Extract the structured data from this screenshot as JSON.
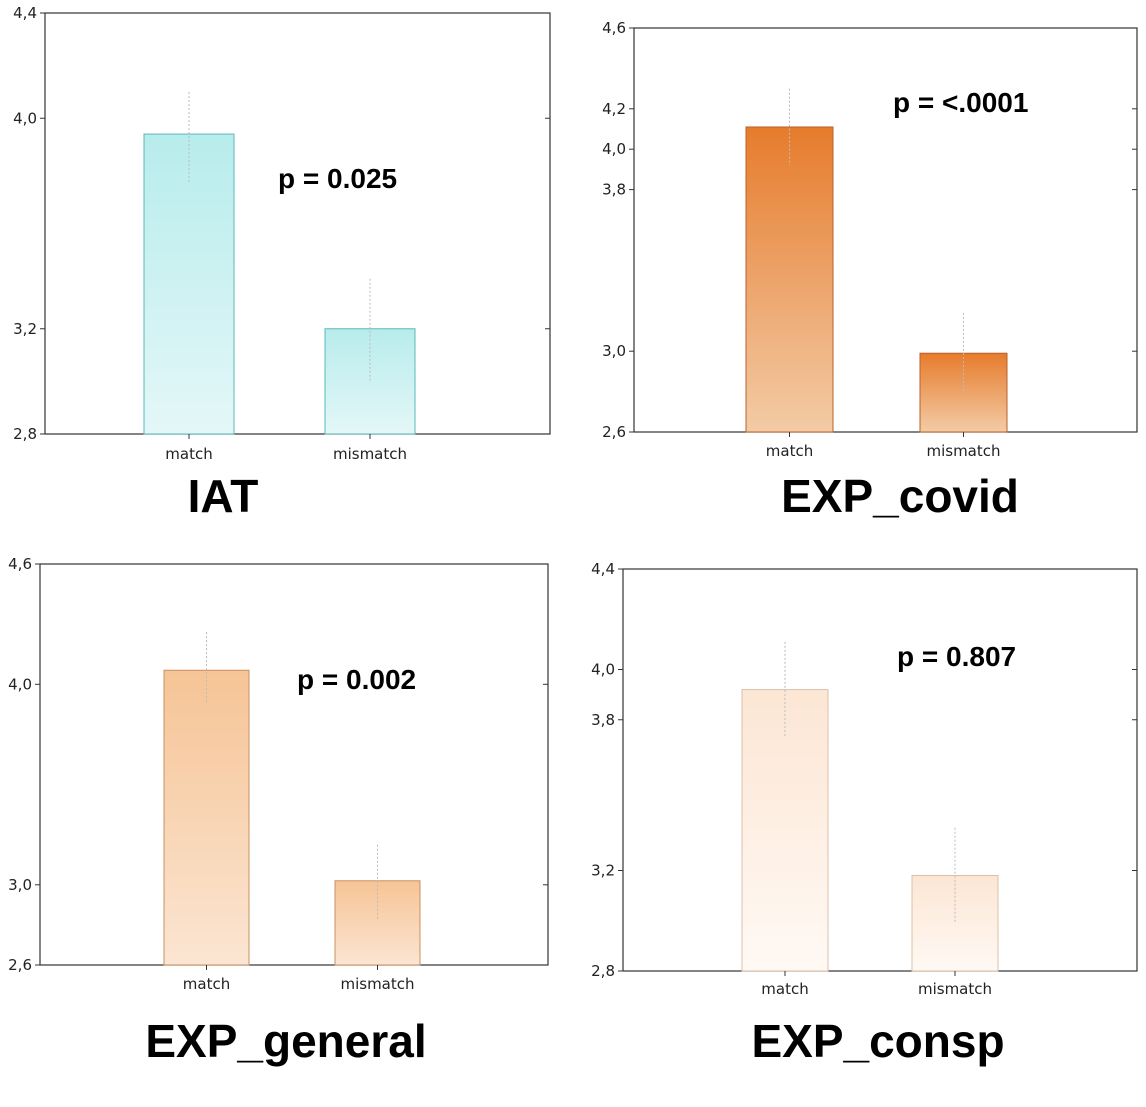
{
  "chart_data": [
    {
      "type": "bar",
      "title": "IAT",
      "annotation": "p = 0.025",
      "categories": [
        "match",
        "mismatch"
      ],
      "values": [
        3.94,
        3.2
      ],
      "error_bars": [
        [
          3.75,
          4.1
        ],
        [
          3.0,
          3.39
        ]
      ],
      "ylim": [
        2.8,
        4.4
      ],
      "yticks": [
        "2,8",
        "3,2",
        "4,0",
        "4,4"
      ],
      "ytick_values": [
        2.8,
        3.2,
        4.0,
        4.4
      ],
      "grid": false,
      "colors": {
        "top": "#b8ecec",
        "bottom": "#e4f7f8",
        "edge": "#5ab8b8"
      }
    },
    {
      "type": "bar",
      "title": "EXP_covid",
      "annotation": "p = <.0001",
      "categories": [
        "match",
        "mismatch"
      ],
      "values": [
        4.11,
        2.99
      ],
      "error_bars": [
        [
          3.92,
          4.3
        ],
        [
          2.79,
          3.19
        ]
      ],
      "ylim": [
        2.6,
        4.6
      ],
      "yticks": [
        "2,6",
        "3,0",
        "3,8",
        "4,0",
        "4,2",
        "4,6"
      ],
      "ytick_values": [
        2.6,
        3.0,
        3.8,
        4.0,
        4.2,
        4.6
      ],
      "grid": false,
      "colors": {
        "top": "#e67c2c",
        "bottom": "#f3cba6",
        "edge": "#b8622a"
      }
    },
    {
      "type": "bar",
      "title": "EXP_general",
      "annotation": "p = 0.002",
      "categories": [
        "match",
        "mismatch"
      ],
      "values": [
        4.07,
        3.02
      ],
      "error_bars": [
        [
          3.9,
          4.26
        ],
        [
          2.83,
          3.2
        ]
      ],
      "ylim": [
        2.6,
        4.6
      ],
      "yticks": [
        "2,6",
        "3,0",
        "4,0",
        "4,6"
      ],
      "ytick_values": [
        2.6,
        3.0,
        4.0,
        4.6
      ],
      "grid": false,
      "colors": {
        "top": "#f6c496",
        "bottom": "#fbe5d2",
        "edge": "#c89060"
      }
    },
    {
      "type": "bar",
      "title": "EXP_consp",
      "annotation": "p = 0.807",
      "categories": [
        "match",
        "mismatch"
      ],
      "values": [
        3.92,
        3.18
      ],
      "error_bars": [
        [
          3.73,
          4.11
        ],
        [
          2.99,
          3.37
        ]
      ],
      "ylim": [
        2.8,
        4.4
      ],
      "yticks": [
        "2,8",
        "3,2",
        "3,8",
        "4,0",
        "4,4"
      ],
      "ytick_values": [
        2.8,
        3.2,
        3.8,
        4.0,
        4.4
      ],
      "grid": false,
      "colors": {
        "top": "#fce6d4",
        "bottom": "#fff9f4",
        "edge": "#dcc0a8"
      }
    }
  ]
}
